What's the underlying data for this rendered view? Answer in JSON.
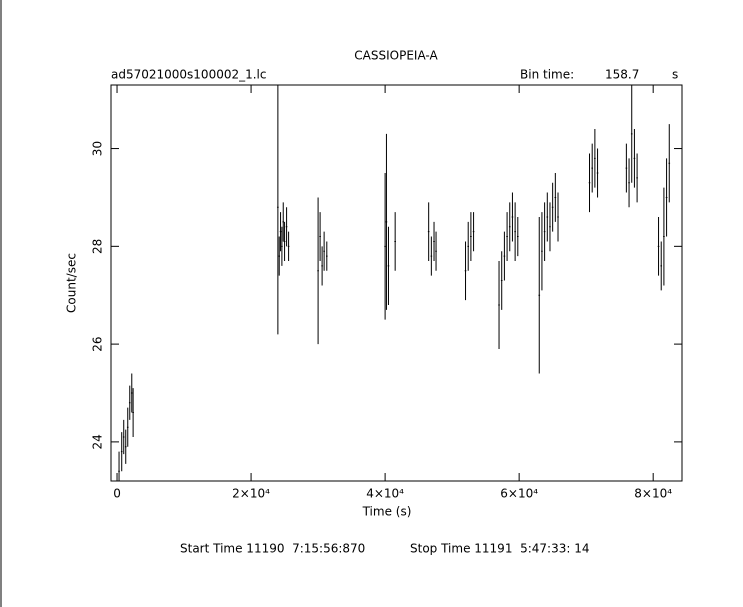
{
  "chart_data": {
    "type": "errorbar",
    "title": "CASSIOPEIA-A",
    "file_label": "ad57021000s100002_1.lc",
    "bin_time_label": "Bin time:",
    "bin_time": 158.7,
    "bin_time_unit": "s",
    "x_label": "Time (s)",
    "y_label": "Count/sec",
    "start_time": "Start Time 11190  7:15:56:870",
    "stop_time": "Stop Time 11191  5:47:33: 14",
    "color": "#000000",
    "xlim": [
      -900,
      84300
    ],
    "ylim": [
      23.2,
      31.3
    ],
    "xticks": [
      0,
      {
        "value": 20000,
        "label": "2×10⁴"
      },
      {
        "value": 40000,
        "label": "4×10⁴"
      },
      {
        "value": 60000,
        "label": "6×10⁴"
      },
      {
        "value": 80000,
        "label": "8×10⁴"
      }
    ],
    "yticks": [
      24,
      26,
      28,
      30
    ],
    "x": [
      300,
      700,
      1000,
      1300,
      1600,
      1900,
      2200,
      2400,
      24000,
      24200,
      24400,
      24600,
      24800,
      25000,
      25300,
      25600,
      30000,
      30300,
      30600,
      30900,
      31300,
      40000,
      40200,
      40500,
      41500,
      46500,
      46900,
      47300,
      47600,
      52000,
      52400,
      52800,
      53200,
      57000,
      57400,
      57800,
      58200,
      58600,
      59000,
      59400,
      59800,
      63000,
      63400,
      63800,
      64200,
      64600,
      65000,
      65400,
      65800,
      70500,
      70900,
      71300,
      71700,
      76000,
      76400,
      76800,
      77200,
      77600,
      80800,
      81200,
      81600,
      82000,
      82400
    ],
    "values": [
      23.4,
      23.8,
      24.1,
      23.9,
      24.3,
      24.8,
      25.0,
      24.6,
      28.8,
      27.8,
      28.3,
      28.0,
      28.5,
      28.1,
      28.4,
      28.0,
      27.5,
      28.2,
      27.6,
      27.9,
      27.8,
      28.0,
      28.5,
      27.6,
      28.1,
      28.3,
      27.8,
      28.1,
      27.9,
      27.5,
      28.0,
      28.2,
      28.3,
      26.8,
      27.3,
      27.8,
      28.2,
      28.4,
      28.6,
      28.3,
      28.2,
      27.0,
      27.9,
      28.3,
      28.6,
      28.4,
      28.8,
      29.0,
      28.6,
      29.3,
      29.6,
      29.8,
      29.5,
      29.6,
      29.3,
      30.3,
      29.8,
      29.4,
      28.0,
      27.6,
      28.2,
      29.0,
      29.7
    ],
    "errors": [
      0.4,
      0.4,
      0.35,
      0.35,
      0.4,
      0.35,
      0.4,
      0.5,
      2.6,
      0.4,
      0.4,
      0.4,
      0.4,
      0.4,
      0.4,
      0.3,
      1.5,
      0.5,
      0.4,
      0.4,
      0.3,
      1.5,
      1.8,
      0.8,
      0.6,
      0.6,
      0.4,
      0.4,
      0.4,
      0.6,
      0.5,
      0.5,
      0.4,
      0.9,
      0.6,
      0.5,
      0.5,
      0.5,
      0.5,
      0.6,
      0.4,
      1.6,
      0.8,
      0.6,
      0.5,
      0.5,
      0.5,
      0.5,
      0.5,
      0.6,
      0.5,
      0.6,
      0.5,
      0.5,
      0.5,
      1.0,
      0.6,
      0.5,
      0.6,
      0.5,
      1.0,
      0.8,
      0.8
    ]
  }
}
